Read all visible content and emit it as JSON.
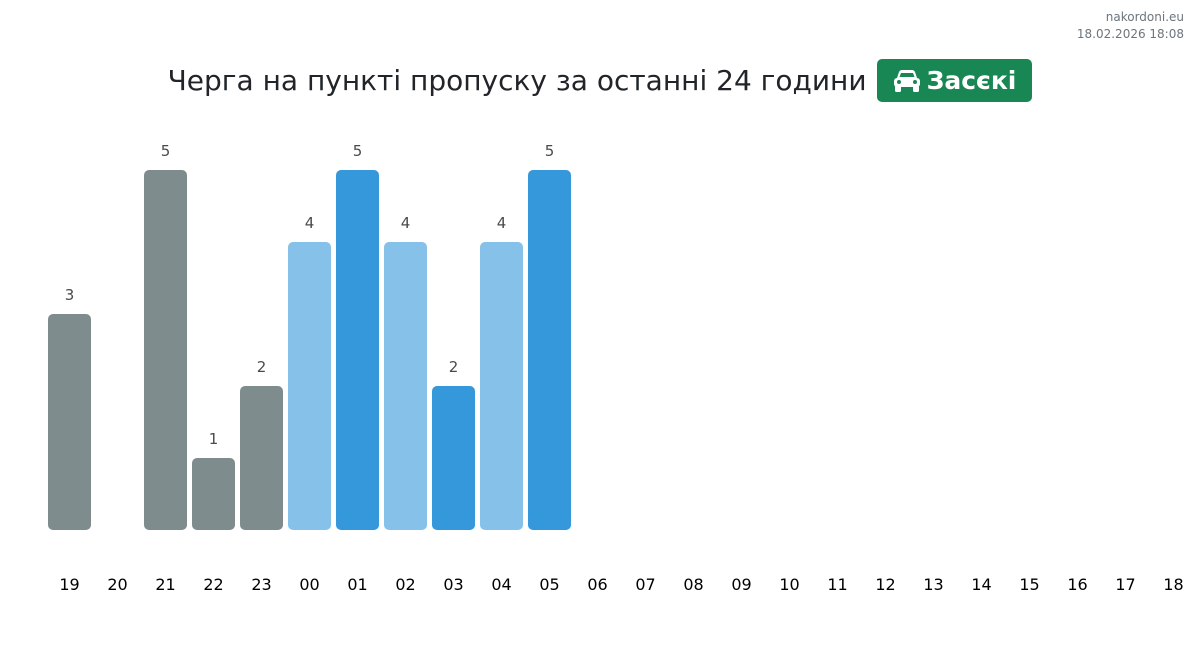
{
  "meta": {
    "site": "nakordoni.eu",
    "timestamp": "18.02.2026 18:08"
  },
  "header": {
    "title": "Черга на пункті пропуску за останні 24 години",
    "checkpoint": "Засєкі",
    "checkpoint_icon": "car-icon"
  },
  "colors": {
    "past": "#7f8c8d",
    "light": "#85c1e9",
    "dark": "#3498db",
    "badge": "#198754"
  },
  "chart_data": {
    "type": "bar",
    "title": "Черга на пункті пропуску за останні 24 години",
    "categories": [
      "19",
      "20",
      "21",
      "22",
      "23",
      "00",
      "01",
      "02",
      "03",
      "04",
      "05",
      "06",
      "07",
      "08",
      "09",
      "10",
      "11",
      "12",
      "13",
      "14",
      "15",
      "16",
      "17",
      "18"
    ],
    "values": [
      3,
      null,
      5,
      1,
      2,
      4,
      5,
      4,
      2,
      4,
      5,
      null,
      null,
      null,
      null,
      null,
      null,
      null,
      null,
      null,
      null,
      null,
      null,
      null
    ],
    "bar_colors": [
      "#7f8c8d",
      null,
      "#7f8c8d",
      "#7f8c8d",
      "#7f8c8d",
      "#85c1e9",
      "#3498db",
      "#85c1e9",
      "#3498db",
      "#85c1e9",
      "#3498db",
      null,
      null,
      null,
      null,
      null,
      null,
      null,
      null,
      null,
      null,
      null,
      null,
      null
    ],
    "ylim": [
      0,
      5
    ],
    "grid": false,
    "legend": "none",
    "data_labels": true
  }
}
